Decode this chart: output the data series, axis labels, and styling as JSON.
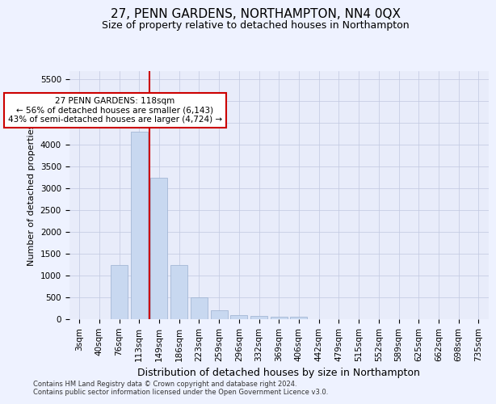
{
  "title": "27, PENN GARDENS, NORTHAMPTON, NN4 0QX",
  "subtitle": "Size of property relative to detached houses in Northampton",
  "xlabel": "Distribution of detached houses by size in Northampton",
  "ylabel": "Number of detached properties",
  "categories": [
    "3sqm",
    "40sqm",
    "76sqm",
    "113sqm",
    "149sqm",
    "186sqm",
    "223sqm",
    "259sqm",
    "296sqm",
    "332sqm",
    "369sqm",
    "406sqm",
    "442sqm",
    "479sqm",
    "515sqm",
    "552sqm",
    "589sqm",
    "625sqm",
    "662sqm",
    "698sqm",
    "735sqm"
  ],
  "values": [
    0,
    0,
    1250,
    4300,
    3250,
    1250,
    500,
    200,
    100,
    75,
    50,
    50,
    0,
    0,
    0,
    0,
    0,
    0,
    0,
    0,
    0
  ],
  "bar_color": "#c8d8f0",
  "bar_edgecolor": "#9ab0d0",
  "vline_color": "#cc0000",
  "annotation_text": "27 PENN GARDENS: 118sqm\n← 56% of detached houses are smaller (6,143)\n43% of semi-detached houses are larger (4,724) →",
  "annotation_box_color": "#ffffff",
  "annotation_box_edgecolor": "#cc0000",
  "ylim": [
    0,
    5700
  ],
  "yticks": [
    0,
    500,
    1000,
    1500,
    2000,
    2500,
    3000,
    3500,
    4000,
    4500,
    5000,
    5500
  ],
  "title_fontsize": 11,
  "subtitle_fontsize": 9,
  "xlabel_fontsize": 9,
  "ylabel_fontsize": 8,
  "tick_fontsize": 7.5,
  "annot_fontsize": 7.5,
  "footer_text": "Contains HM Land Registry data © Crown copyright and database right 2024.\nContains public sector information licensed under the Open Government Licence v3.0.",
  "background_color": "#eef2ff",
  "plot_background_color": "#e8ecfa",
  "grid_color": "#c0c8e0"
}
